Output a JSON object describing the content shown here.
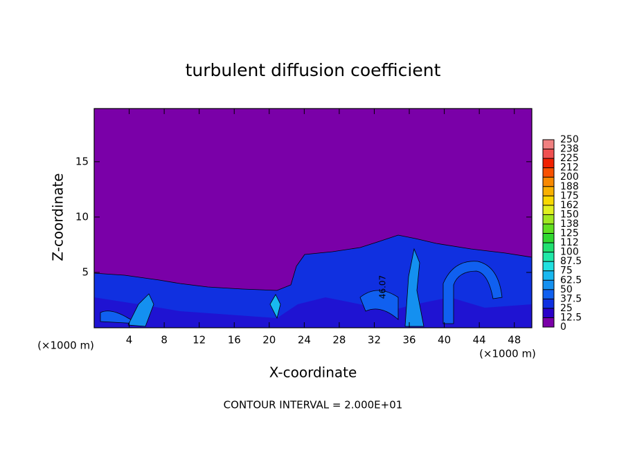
{
  "chart_data": {
    "type": "contour",
    "title": "turbulent diffusion coefficient",
    "x_label": "X-coordinate",
    "y_label": "Z-coordinate",
    "x_unit": "(×1000 m)",
    "y_unit": "(×1000 m)",
    "footer": "CONTOUR INTERVAL = 2.000E+01",
    "contour_label": "46.07",
    "xlim": [
      0,
      50
    ],
    "xticks": [
      4,
      8,
      12,
      16,
      20,
      24,
      28,
      32,
      36,
      40,
      44,
      48
    ],
    "ylim": [
      0,
      19.8
    ],
    "yticks": [
      5,
      10,
      15
    ],
    "colorbar_lim": [
      0,
      250
    ],
    "colorbar_ticks": [
      0,
      12.5,
      25,
      37.5,
      50,
      62.5,
      75,
      87.5,
      100,
      {
        "value": 112.5,
        "label": "112"
      },
      125,
      {
        "value": 137.5,
        "label": "138"
      },
      150,
      {
        "value": 162.5,
        "label": "162"
      },
      175,
      {
        "value": 187.5,
        "label": "188"
      },
      200,
      {
        "value": 212.5,
        "label": "212"
      },
      225,
      {
        "value": 237.5,
        "label": "238"
      },
      250
    ],
    "colors": [
      "#7a00a8",
      "#2a00c8",
      "#1030e0",
      "#1060f0",
      "#1490f0",
      "#18b8f0",
      "#20e0e0",
      "#20e8a8",
      "#20e070",
      "#30d830",
      "#60e020",
      "#a0e820",
      "#e0f020",
      "#f8d800",
      "#f8b000",
      "#f88800",
      "#f85000",
      "#f02000",
      "#f05050",
      "#f08080"
    ]
  }
}
